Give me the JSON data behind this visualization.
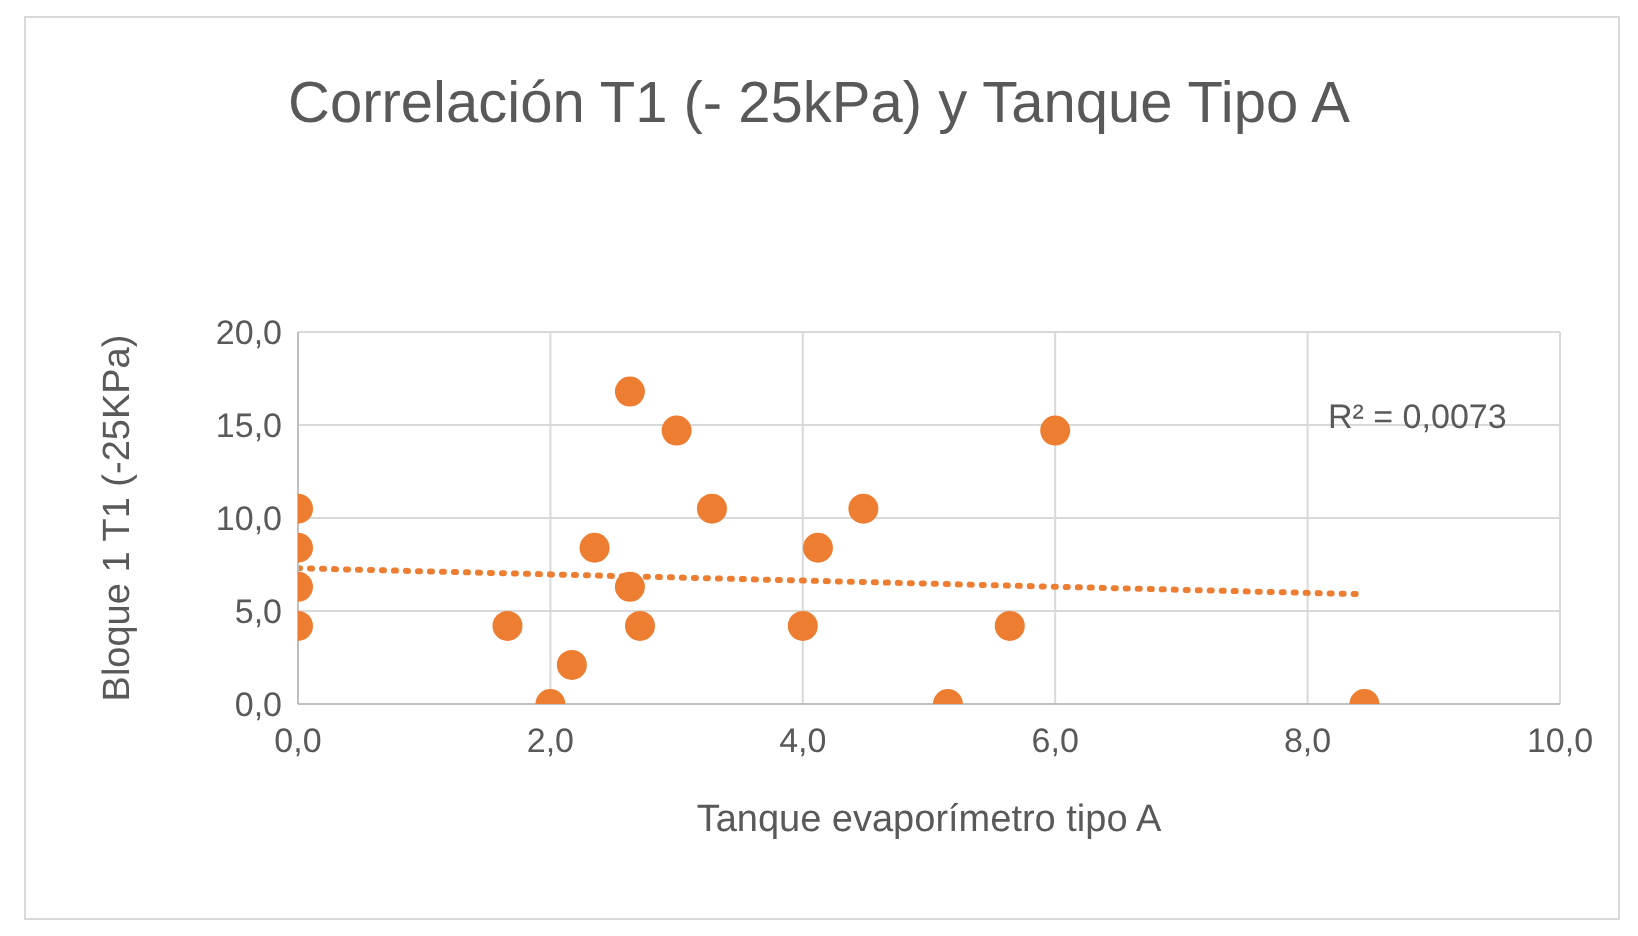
{
  "chart_data": {
    "type": "scatter",
    "title": "Correlación T1 (- 25kPa) y Tanque Tipo A",
    "xlabel": "Tanque evaporímetro tipo A",
    "ylabel": "Bloque 1 T1 (-25KPa)",
    "series": [
      {
        "color": "#ed7d31",
        "marker": "circle",
        "x": [
          0,
          0,
          0,
          0,
          1.66,
          2.0,
          2.17,
          2.35,
          2.63,
          2.63,
          2.71,
          3.0,
          3.28,
          4.0,
          4.12,
          4.48,
          5.15,
          5.64,
          6.0,
          8.45
        ],
        "values": [
          10.5,
          8.4,
          6.3,
          4.2,
          4.2,
          0,
          2.1,
          8.4,
          16.8,
          6.3,
          4.2,
          14.7,
          10.5,
          4.2,
          8.4,
          10.5,
          0,
          4.2,
          14.7,
          0
        ]
      },
      {
        "type": "line",
        "color": "#ed7d31",
        "line_style": "dotted",
        "x": [
          0,
          8.45
        ],
        "values": [
          7.3,
          5.9
        ]
      }
    ],
    "annotations": [
      "R² = 0,0073"
    ],
    "xlim": [
      0,
      10
    ],
    "xticks": [
      {
        "value": 0,
        "label": "0,0"
      },
      {
        "value": 2,
        "label": "2,0"
      },
      {
        "value": 4,
        "label": "4,0"
      },
      {
        "value": 6,
        "label": "6,0"
      },
      {
        "value": 8,
        "label": "8,0"
      },
      {
        "value": 10,
        "label": "10,0"
      }
    ],
    "ylim": [
      0,
      20
    ],
    "yticks": [
      {
        "value": 0,
        "label": "0,0"
      },
      {
        "value": 5,
        "label": "5,0"
      },
      {
        "value": 10,
        "label": "10,0"
      },
      {
        "value": 15,
        "label": "15,0"
      },
      {
        "value": 20,
        "label": "20,0"
      }
    ],
    "grid": true
  }
}
